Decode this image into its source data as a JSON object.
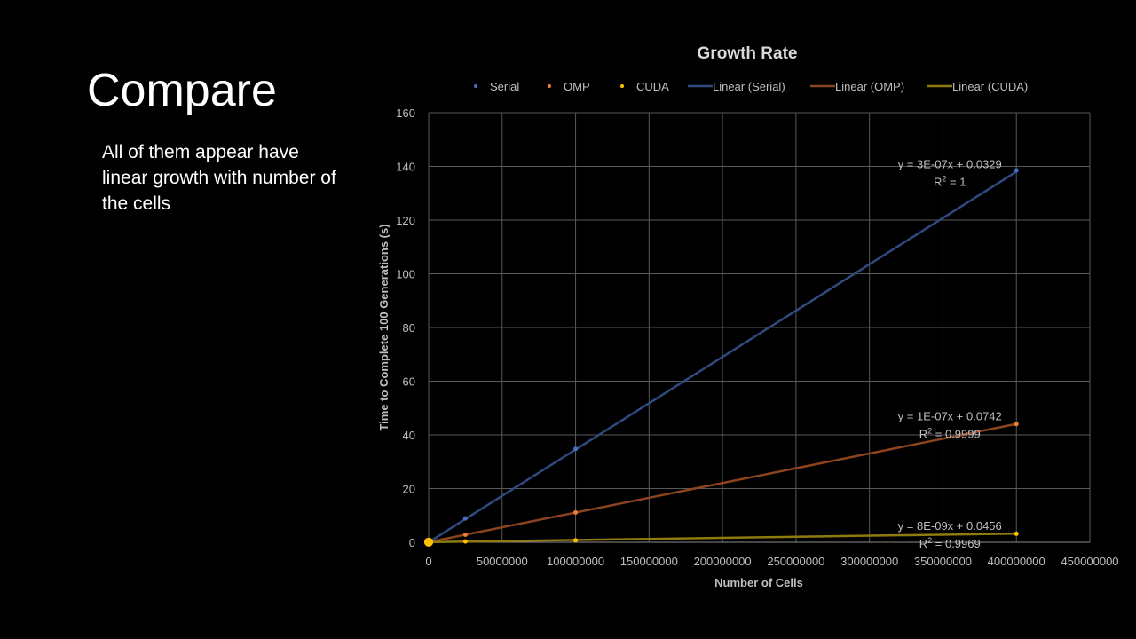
{
  "slide": {
    "title": "Compare",
    "body": "All of them appear have linear growth with number of the cells"
  },
  "chart_data": {
    "type": "scatter",
    "title": "Growth Rate",
    "xlabel": "Number of Cells",
    "ylabel": "Time to Complete 100 Generations (s)",
    "xlim": [
      0,
      450000000
    ],
    "ylim": [
      0,
      160
    ],
    "xticks": [
      0,
      50000000,
      100000000,
      150000000,
      200000000,
      250000000,
      300000000,
      350000000,
      400000000,
      450000000
    ],
    "yticks": [
      0,
      20,
      40,
      60,
      80,
      100,
      120,
      140,
      160
    ],
    "grid": true,
    "legend_position": "top",
    "series": [
      {
        "name": "Serial",
        "color": "#4472C4",
        "trend_color": "#2F4A7F",
        "x": [
          0,
          25000000,
          100000000,
          400000000
        ],
        "y": [
          0.05,
          8.9,
          34.8,
          138.5
        ]
      },
      {
        "name": "OMP",
        "color": "#ED7D31",
        "trend_color": "#8C4420",
        "x": [
          0,
          25000000,
          100000000,
          400000000
        ],
        "y": [
          0.1,
          2.8,
          11.1,
          44.0
        ]
      },
      {
        "name": "CUDA",
        "color": "#FFC000",
        "trend_color": "#8F7A0E",
        "x": [
          0,
          25000000,
          100000000,
          400000000
        ],
        "y": [
          0.05,
          0.3,
          0.7,
          3.2
        ]
      }
    ],
    "trendlines": [
      {
        "name": "Linear (Serial)",
        "series": "Serial",
        "slope": 3.45e-07,
        "intercept": 0.0329,
        "equation": "y = 3E-07x + 0.0329",
        "r2_label": "R",
        "r2_value": " = 1"
      },
      {
        "name": "Linear (OMP)",
        "series": "OMP",
        "slope": 1.1e-07,
        "intercept": 0.0742,
        "equation": "y = 1E-07x + 0.0742",
        "r2_label": "R",
        "r2_value": " = 0.9999"
      },
      {
        "name": "Linear (CUDA)",
        "series": "CUDA",
        "slope": 8e-09,
        "intercept": 0.0456,
        "equation": "y = 8E-09x + 0.0456",
        "r2_label": "R",
        "r2_value": " = 0.9969"
      }
    ]
  }
}
